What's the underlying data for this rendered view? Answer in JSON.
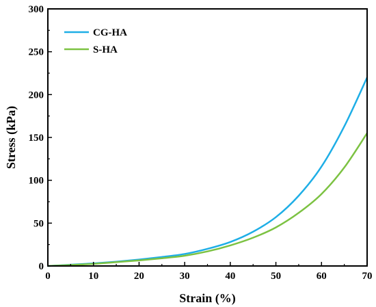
{
  "chart_data": {
    "type": "line",
    "title": "",
    "xlabel": "Strain (%)",
    "ylabel": "Stress (kPa)",
    "xlim": [
      0,
      70
    ],
    "ylim": [
      0,
      300
    ],
    "xticks": [
      0,
      10,
      20,
      30,
      40,
      50,
      60,
      70
    ],
    "yticks": [
      0,
      50,
      100,
      150,
      200,
      250,
      300
    ],
    "xtick_labels": [
      "0",
      "10",
      "20",
      "30",
      "40",
      "50",
      "60",
      "70"
    ],
    "ytick_labels": [
      "0",
      "50",
      "100",
      "150",
      "200",
      "250",
      "300"
    ],
    "grid": false,
    "legend_position": "top-left",
    "series": [
      {
        "name": "CG-HA",
        "color": "#1eaee6",
        "x": [
          0,
          5,
          10,
          15,
          20,
          25,
          30,
          35,
          40,
          45,
          50,
          55,
          60,
          65,
          70
        ],
        "y": [
          0,
          1.5,
          3,
          5,
          7.5,
          10.5,
          14,
          20,
          28,
          40,
          57,
          82,
          116,
          163,
          220
        ]
      },
      {
        "name": "S-HA",
        "color": "#7cc242",
        "x": [
          0,
          5,
          10,
          15,
          20,
          25,
          30,
          35,
          40,
          45,
          50,
          55,
          60,
          65,
          70
        ],
        "y": [
          0,
          1.2,
          2.5,
          4.5,
          6.5,
          9,
          12,
          17,
          24,
          33,
          45,
          62,
          84,
          115,
          155
        ]
      }
    ]
  }
}
